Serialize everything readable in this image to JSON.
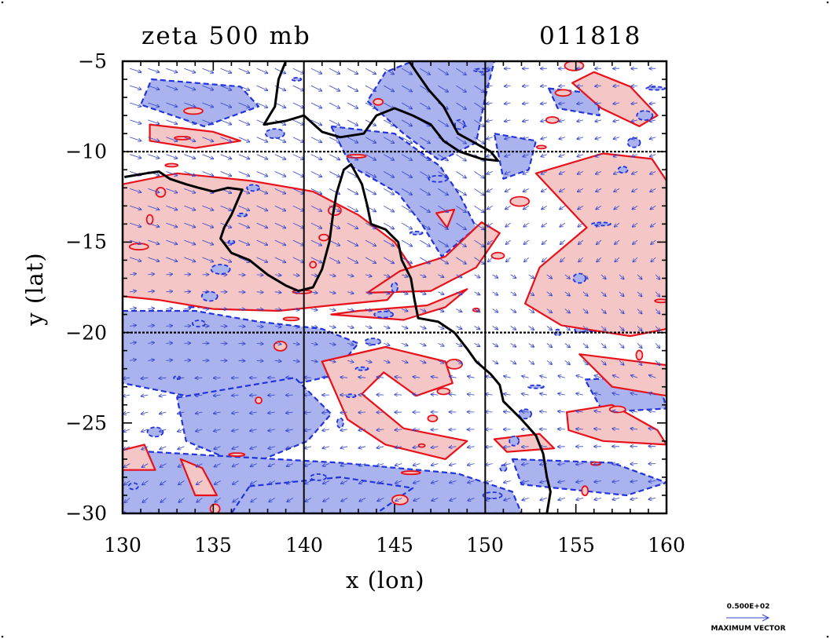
{
  "map": {
    "title": "zeta 500 mb",
    "date_code": "011818",
    "xlabel": "x (lon)",
    "ylabel": "y (lat)",
    "lon_range": [
      130,
      160
    ],
    "lat_range": [
      -30,
      -5
    ],
    "lon_ticks": [
      "130",
      "135",
      "140",
      "145",
      "150",
      "155",
      "160"
    ],
    "lat_ticks": [
      "−5",
      "−10",
      "−15",
      "−20",
      "−25",
      "−30"
    ],
    "grid_lines": {
      "lon": [
        140,
        150
      ],
      "lat": [
        -10,
        -20
      ]
    },
    "colors": {
      "positive_fill": "#f5c6c6",
      "positive_contour": "#e8111a",
      "negative_fill": "#aab3ee",
      "negative_contour": "#2233dd",
      "vectors": "#3344cc",
      "coastline": "#000000"
    },
    "vector_legend": {
      "value": "0.500E+02",
      "label": "MAXIMUM VECTOR"
    },
    "coastline": [
      [
        [
          139.0,
          -5.0
        ],
        [
          138.6,
          -6.0
        ],
        [
          138.4,
          -7.5
        ],
        [
          137.8,
          -8.5
        ],
        [
          139.0,
          -8.3
        ],
        [
          140.0,
          -8.0
        ],
        [
          141.0,
          -8.9
        ],
        [
          142.0,
          -9.2
        ],
        [
          143.3,
          -9.0
        ],
        [
          144.0,
          -8.0
        ],
        [
          145.0,
          -7.6
        ],
        [
          146.0,
          -8.0
        ],
        [
          147.0,
          -8.5
        ],
        [
          147.7,
          -9.4
        ],
        [
          148.6,
          -10.0
        ],
        [
          149.8,
          -10.4
        ],
        [
          150.7,
          -10.5
        ],
        [
          150.3,
          -10.0
        ],
        [
          148.5,
          -9.0
        ],
        [
          147.7,
          -7.5
        ],
        [
          146.9,
          -6.6
        ],
        [
          146.2,
          -5.6
        ],
        [
          145.8,
          -5.0
        ]
      ],
      [
        [
          130.1,
          -11.4
        ],
        [
          131.3,
          -11.2
        ],
        [
          132.0,
          -11.1
        ],
        [
          132.6,
          -11.5
        ],
        [
          133.5,
          -11.8
        ],
        [
          134.2,
          -12.0
        ],
        [
          135.0,
          -12.2
        ],
        [
          135.8,
          -12.0
        ],
        [
          136.6,
          -12.1
        ],
        [
          136.0,
          -13.5
        ],
        [
          135.6,
          -14.2
        ],
        [
          135.4,
          -14.8
        ],
        [
          136.0,
          -15.6
        ],
        [
          137.0,
          -16.0
        ],
        [
          138.0,
          -16.8
        ],
        [
          139.0,
          -17.4
        ],
        [
          139.7,
          -17.7
        ],
        [
          140.5,
          -17.5
        ],
        [
          141.0,
          -16.5
        ],
        [
          141.4,
          -15.0
        ],
        [
          141.6,
          -13.5
        ],
        [
          141.8,
          -12.3
        ],
        [
          142.2,
          -11.0
        ],
        [
          142.6,
          -10.7
        ],
        [
          143.2,
          -11.8
        ],
        [
          143.5,
          -13.0
        ],
        [
          143.7,
          -14.0
        ],
        [
          144.5,
          -14.3
        ],
        [
          145.2,
          -15.0
        ],
        [
          145.4,
          -16.0
        ],
        [
          145.9,
          -17.0
        ],
        [
          146.1,
          -18.2
        ],
        [
          146.3,
          -19.2
        ],
        [
          147.4,
          -19.4
        ],
        [
          148.3,
          -20.0
        ],
        [
          149.0,
          -20.9
        ],
        [
          149.5,
          -21.6
        ],
        [
          150.3,
          -22.3
        ],
        [
          150.8,
          -22.9
        ],
        [
          151.0,
          -23.8
        ],
        [
          152.0,
          -24.8
        ],
        [
          152.8,
          -25.7
        ],
        [
          153.2,
          -26.7
        ],
        [
          153.4,
          -28.0
        ],
        [
          153.6,
          -28.8
        ],
        [
          153.4,
          -30.0
        ]
      ]
    ]
  }
}
